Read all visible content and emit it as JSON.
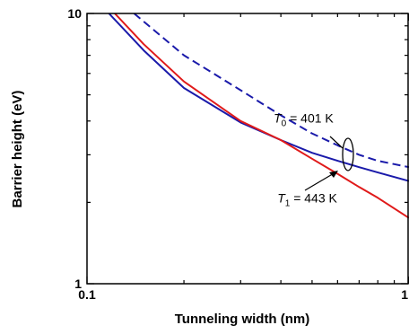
{
  "chart_data": {
    "type": "line",
    "title": "",
    "xlabel": "Tunneling width (nm)",
    "ylabel": "Barrier height (eV)",
    "xscale": "log",
    "yscale": "log",
    "xlim": [
      0.1,
      1
    ],
    "ylim": [
      1,
      10
    ],
    "x_tick_labels": [
      {
        "value": 0.1,
        "label": "0.1"
      },
      {
        "value": 1,
        "label": "1"
      }
    ],
    "y_tick_labels": [
      {
        "value": 1,
        "label": "1"
      },
      {
        "value": 10,
        "label": "10"
      }
    ],
    "grid": false,
    "series": [
      {
        "color": "#1a1aaa",
        "style": "dashed",
        "x": [
          0.14,
          0.2,
          0.3,
          0.4,
          0.5,
          0.6,
          0.7,
          0.8,
          1.0
        ],
        "y": [
          10,
          7.0,
          5.2,
          4.2,
          3.6,
          3.25,
          3.0,
          2.85,
          2.7
        ]
      },
      {
        "color": "#1a1aaa",
        "style": "solid",
        "x": [
          0.117,
          0.15,
          0.2,
          0.3,
          0.4,
          0.5,
          0.6,
          0.7,
          0.8,
          1.0
        ],
        "y": [
          10,
          7.3,
          5.3,
          3.95,
          3.4,
          3.05,
          2.85,
          2.7,
          2.58,
          2.4
        ]
      },
      {
        "color": "#e01a1a",
        "style": "solid",
        "x": [
          0.122,
          0.15,
          0.2,
          0.3,
          0.4,
          0.5,
          0.6,
          0.7,
          0.8,
          1.0
        ],
        "y": [
          10,
          7.7,
          5.6,
          4.0,
          3.4,
          2.9,
          2.55,
          2.28,
          2.08,
          1.75
        ]
      }
    ],
    "annotations": [
      {
        "symbol": "T",
        "subscript": "0",
        "text": " = 401 K",
        "x": 0.38,
        "y": 3.95
      },
      {
        "symbol": "T",
        "subscript": "1",
        "text": " = 443 K",
        "x": 0.39,
        "y": 2.0
      }
    ]
  }
}
